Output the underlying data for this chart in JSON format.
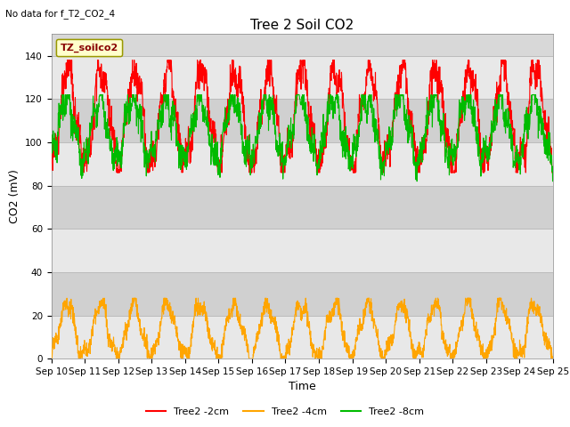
{
  "title": "Tree 2 Soil CO2",
  "top_left_text": "No data for f_T2_CO2_4",
  "ylabel": "CO2 (mV)",
  "xlabel": "Time",
  "ylim": [
    0,
    150
  ],
  "yticks": [
    0,
    20,
    40,
    60,
    80,
    100,
    120,
    140
  ],
  "xtick_labels": [
    "Sep 10",
    "Sep 11",
    "Sep 12",
    "Sep 13",
    "Sep 14",
    "Sep 15",
    "Sep 16",
    "Sep 17",
    "Sep 18",
    "Sep 19",
    "Sep 20",
    "Sep 21",
    "Sep 22",
    "Sep 23",
    "Sep 24",
    "Sep 25"
  ],
  "legend_box_label": "TZ_soilco2",
  "legend_entries": [
    "Tree2 -2cm",
    "Tree2 -4cm",
    "Tree2 -8cm"
  ],
  "line_colors": [
    "#ff0000",
    "#ffa500",
    "#00bb00"
  ],
  "background_color": "#ffffff",
  "plot_bg_color": "#d8d8d8",
  "band_light": "#e8e8e8",
  "band_dark": "#d0d0d0",
  "title_fontsize": 11,
  "axis_fontsize": 9,
  "tick_fontsize": 7.5,
  "n_points": 2160
}
